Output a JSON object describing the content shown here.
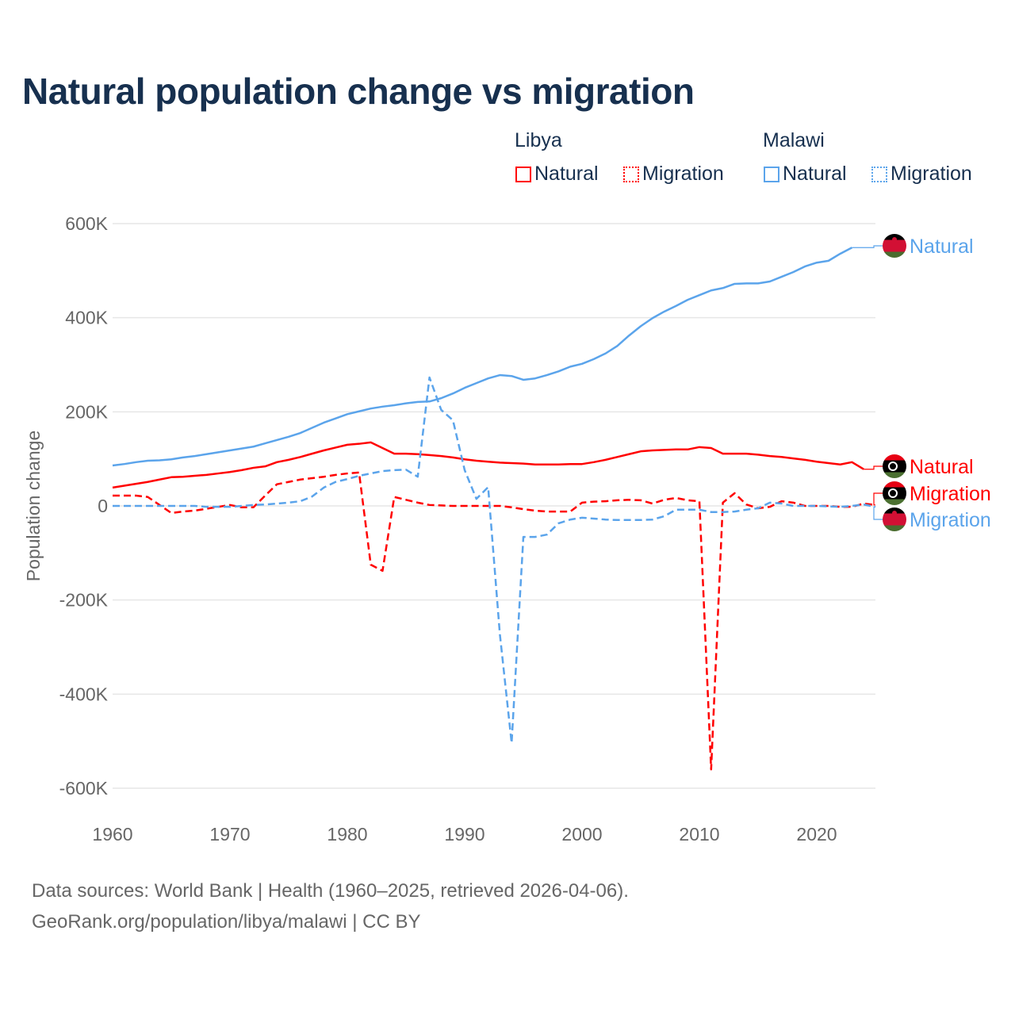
{
  "title": "Natural population change vs migration",
  "legend": {
    "groups": [
      {
        "name": "Libya",
        "color": "#ff0000",
        "items": [
          "Natural",
          "Migration"
        ]
      },
      {
        "name": "Malawi",
        "color": "#5ba4eb",
        "items": [
          "Natural",
          "Migration"
        ]
      }
    ]
  },
  "footer": {
    "line1": "Data sources: World Bank | Health (1960–2025, retrieved 2026-04-06).",
    "line2": "GeoRank.org/population/libya/malawi | CC BY"
  },
  "chart_data": {
    "type": "line",
    "title": "Natural population change vs migration",
    "xlabel": "",
    "ylabel": "Population change",
    "xlim": [
      1960,
      2025
    ],
    "ylim": [
      -600000,
      600000
    ],
    "x_ticks": [
      1960,
      1970,
      1980,
      1990,
      2000,
      2010,
      2020
    ],
    "x_tick_labels": [
      "1960",
      "1970",
      "1980",
      "1990",
      "2000",
      "2010",
      "2020"
    ],
    "y_ticks": [
      600000,
      400000,
      200000,
      0,
      -200000,
      -400000,
      -600000
    ],
    "y_tick_labels": [
      "600K",
      "400K",
      "200K",
      "0",
      "-200K",
      "-400K",
      "-600K"
    ],
    "grid": true,
    "legend_position": "top-right",
    "series": [
      {
        "name": "Libya Natural",
        "country": "Libya",
        "kind": "Natural",
        "label": "Natural",
        "color": "#ff0000",
        "dash": false,
        "start": 1960,
        "values": [
          39,
          43,
          47,
          51,
          56,
          61,
          62,
          64,
          66,
          69,
          72,
          76,
          81,
          84,
          93,
          98,
          104,
          111,
          118,
          124,
          130,
          132,
          135,
          123,
          111,
          111,
          110,
          108,
          106,
          103,
          99,
          96,
          94,
          92,
          91,
          90,
          88,
          88,
          88,
          89,
          89,
          93,
          98,
          104,
          110,
          116,
          118,
          119,
          120,
          120,
          125,
          123,
          111,
          111,
          111,
          109,
          106,
          104,
          101,
          98,
          94,
          91,
          88,
          93,
          78
        ]
      },
      {
        "name": "Libya Migration",
        "country": "Libya",
        "kind": "Migration",
        "label": "Migration",
        "color": "#ff0000",
        "dash": true,
        "start": 1960,
        "values": [
          22,
          22,
          22,
          19,
          2,
          -15,
          -12,
          -10,
          -6,
          -2,
          2,
          -3,
          -3,
          22,
          46,
          51,
          56,
          59,
          62,
          66,
          69,
          71,
          -125,
          -138,
          19,
          13,
          7,
          2,
          1,
          0,
          0,
          0,
          0,
          0,
          -3,
          -7,
          -10,
          -12,
          -12,
          -12,
          7,
          9,
          10,
          12,
          13,
          12,
          5,
          13,
          17,
          12,
          10,
          -560,
          7,
          27,
          3,
          -5,
          -2,
          10,
          7,
          0,
          0,
          0,
          -2,
          -2,
          5,
          2
        ]
      },
      {
        "name": "Malawi Natural",
        "country": "Malawi",
        "kind": "Natural",
        "label": "Natural",
        "color": "#5ba4eb",
        "dash": false,
        "start": 1960,
        "values": [
          86,
          89,
          93,
          96,
          97,
          99,
          103,
          106,
          110,
          114,
          118,
          122,
          126,
          133,
          140,
          147,
          155,
          166,
          177,
          186,
          195,
          201,
          207,
          211,
          214,
          218,
          221,
          222,
          229,
          239,
          251,
          261,
          271,
          278,
          276,
          268,
          271,
          278,
          286,
          296,
          302,
          312,
          324,
          340,
          362,
          382,
          399,
          413,
          425,
          438,
          448,
          458,
          463,
          472,
          473,
          473,
          477,
          487,
          497,
          509,
          517,
          521,
          536,
          549
        ]
      },
      {
        "name": "Malawi Migration",
        "country": "Malawi",
        "kind": "Migration",
        "label": "Migration",
        "color": "#5ba4eb",
        "dash": true,
        "start": 1960,
        "values": [
          0,
          0,
          0,
          0,
          0,
          0,
          0,
          0,
          -2,
          -2,
          -2,
          0,
          2,
          3,
          5,
          7,
          10,
          20,
          39,
          51,
          57,
          64,
          69,
          74,
          76,
          77,
          62,
          273,
          204,
          182,
          76,
          15,
          40,
          -273,
          -504,
          -66,
          -66,
          -61,
          -37,
          -29,
          -25,
          -27,
          -29,
          -30,
          -30,
          -30,
          -29,
          -22,
          -8,
          -8,
          -8,
          -13,
          -13,
          -12,
          -8,
          -5,
          7,
          5,
          0,
          0,
          0,
          -1,
          -2,
          0,
          3,
          -2
        ]
      }
    ],
    "value_unit": "thousands"
  }
}
